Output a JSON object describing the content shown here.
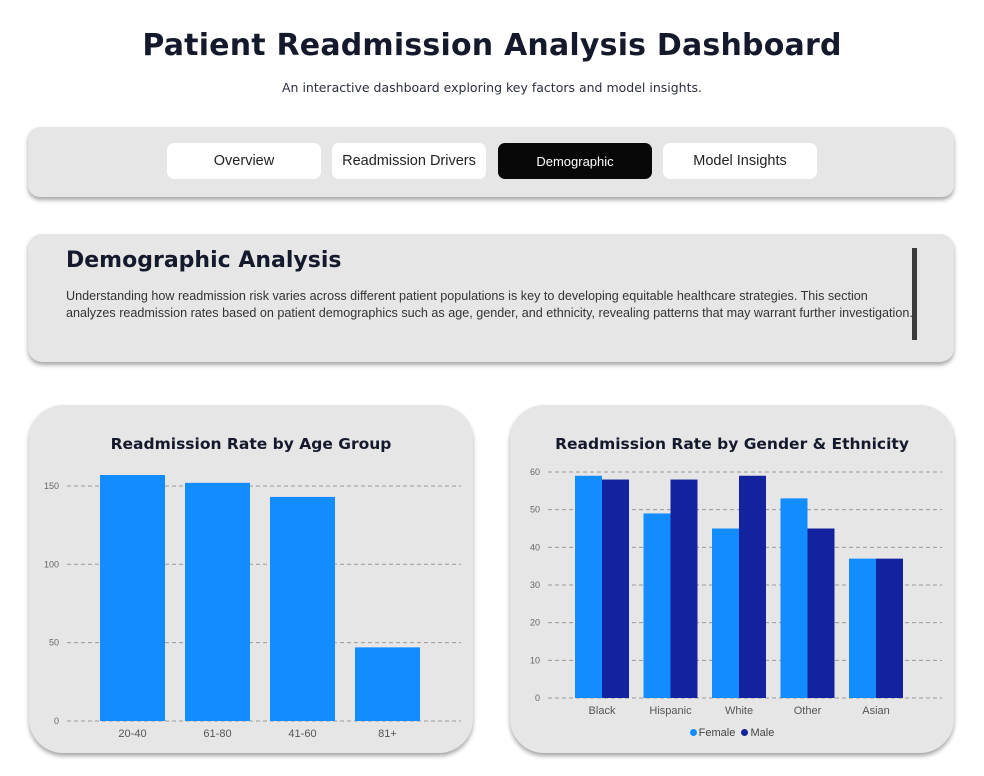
{
  "header": {
    "title": "Patient Readmission Analysis Dashboard",
    "subtitle": "An interactive dashboard exploring key factors and model insights."
  },
  "tabs": [
    {
      "label": "Overview",
      "active": false
    },
    {
      "label": "Readmission Drivers",
      "active": false
    },
    {
      "label": "Demographic",
      "active": true
    },
    {
      "label": "Model Insights",
      "active": false
    }
  ],
  "intro": {
    "heading": "Demographic Analysis",
    "body": "Understanding how readmission risk varies across different patient populations is key to developing equitable healthcare strategies. This section analyzes readmission rates based on patient demographics such as age, gender, and ethnicity, revealing patterns that may warrant further investigation."
  },
  "colors": {
    "primary_bar": "#138cff",
    "female": "#138cff",
    "male": "#13229e",
    "card_bg": "#e6e6e6",
    "active_tab": "#080808"
  },
  "chart_data": [
    {
      "type": "bar",
      "title": "Readmission Rate by Age Group",
      "categories": [
        "20-40",
        "61-80",
        "41-60",
        "81+"
      ],
      "values": [
        157,
        152,
        143,
        47
      ],
      "yticks": [
        0,
        50,
        100,
        150
      ],
      "ylim": [
        0,
        157
      ],
      "grid": true
    },
    {
      "type": "bar",
      "title": "Readmission Rate by Gender & Ethnicity",
      "categories": [
        "Black",
        "Hispanic",
        "White",
        "Other",
        "Asian"
      ],
      "series": [
        {
          "name": "Female",
          "values": [
            59,
            49,
            45,
            53,
            37
          ]
        },
        {
          "name": "Male",
          "values": [
            58,
            58,
            59,
            45,
            37
          ]
        }
      ],
      "yticks": [
        0,
        10,
        20,
        30,
        40,
        50,
        60
      ],
      "ylim": [
        0,
        60
      ],
      "grid": true,
      "legend": "bottom"
    }
  ]
}
